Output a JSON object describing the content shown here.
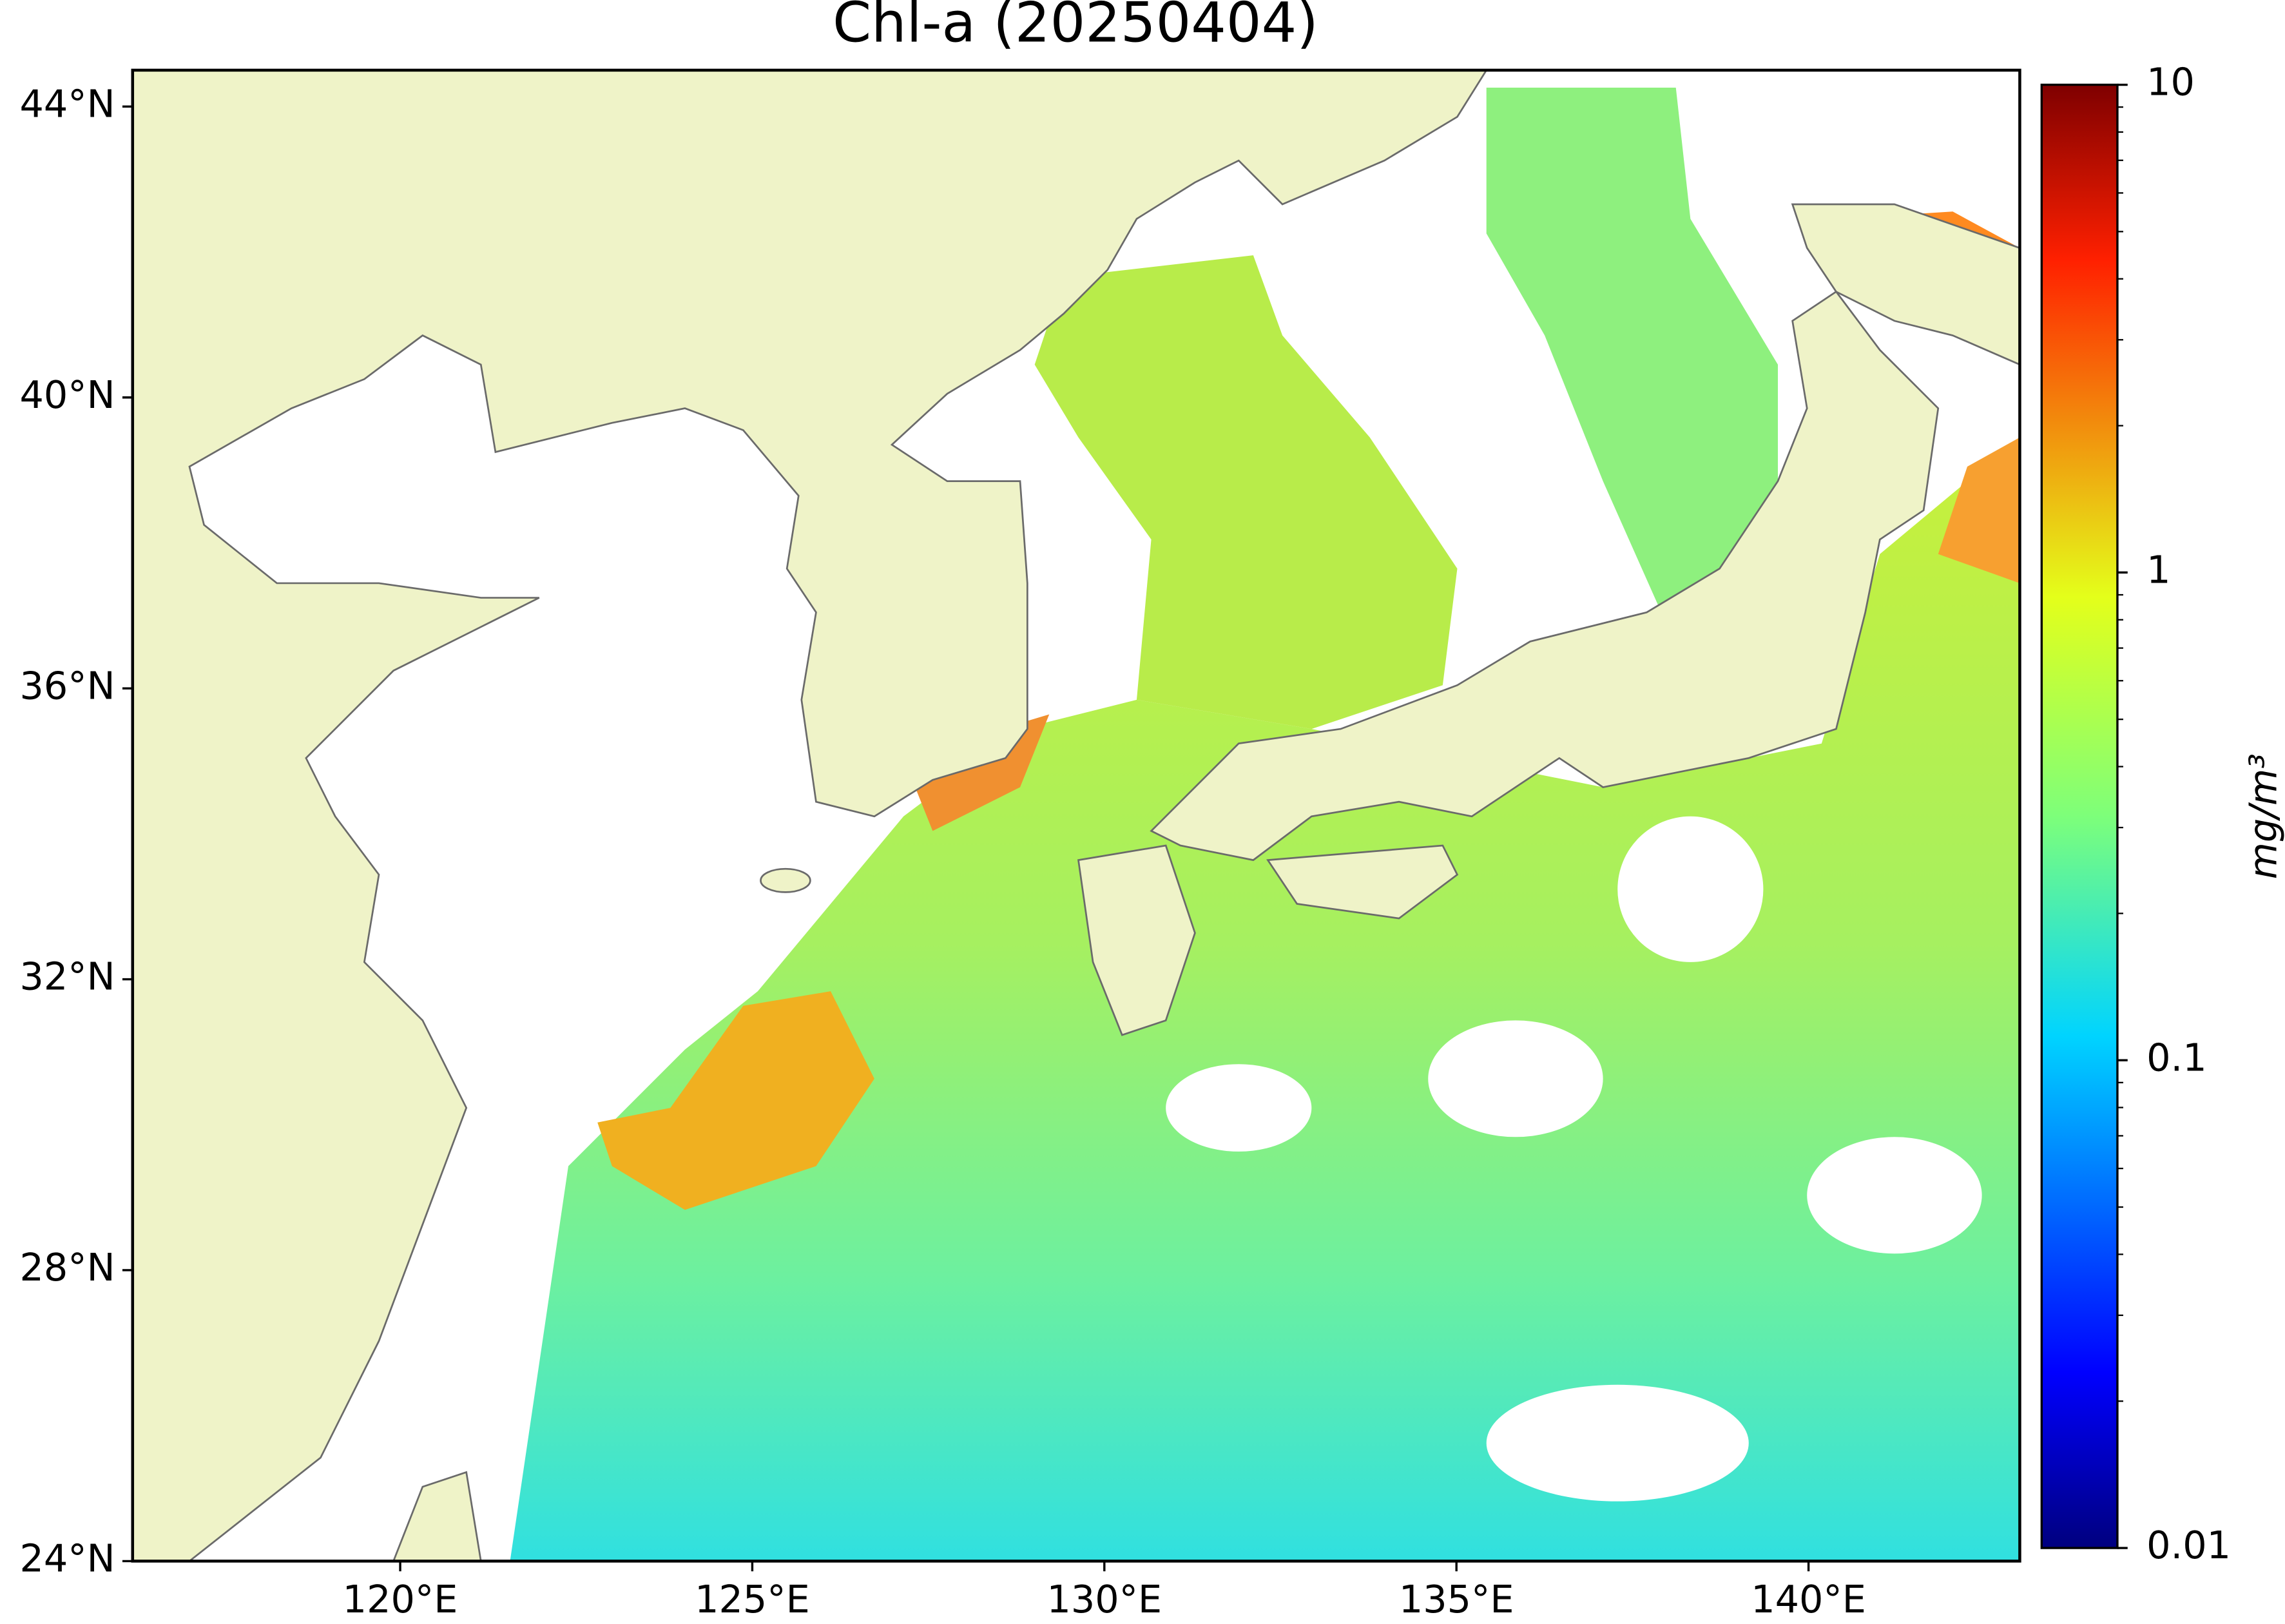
{
  "map": {
    "title": "Chl-a (20250404)",
    "xlim": [
      116.2,
      143
    ],
    "ylim": [
      24,
      44.5
    ],
    "xticks": [
      {
        "value": 120,
        "label": "120°E"
      },
      {
        "value": 125,
        "label": "125°E"
      },
      {
        "value": 130,
        "label": "130°E"
      },
      {
        "value": 135,
        "label": "135°E"
      },
      {
        "value": 140,
        "label": "140°E"
      }
    ],
    "yticks": [
      {
        "value": 24,
        "label": "24°N"
      },
      {
        "value": 28,
        "label": "28°N"
      },
      {
        "value": 32,
        "label": "32°N"
      },
      {
        "value": 36,
        "label": "36°N"
      },
      {
        "value": 40,
        "label": "40°N"
      },
      {
        "value": 44,
        "label": "44°N"
      }
    ],
    "colorbar": {
      "label": "mg/m³",
      "scale": "log",
      "lim": [
        0.01,
        10
      ],
      "ticks": [
        0.01,
        0.1,
        1,
        10
      ]
    }
  }
}
